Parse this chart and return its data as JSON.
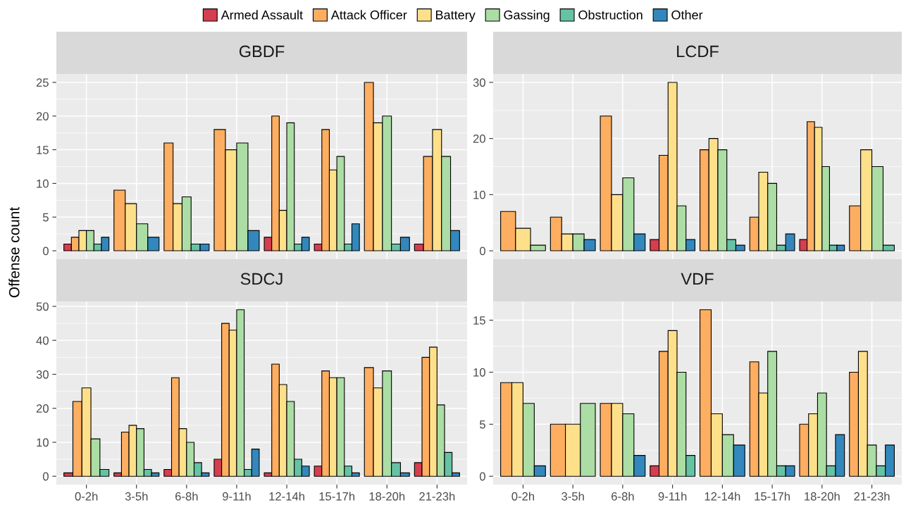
{
  "chart_data": [
    {
      "type": "bar",
      "title": "GBDF",
      "ylabel": "Offense count",
      "legend": "top",
      "grid": true,
      "tick_labels": "y",
      "categories": [
        "0-2h",
        "3-5h",
        "6-8h",
        "9-11h",
        "12-14h",
        "15-17h",
        "18-20h",
        "21-23h"
      ],
      "ylim": [
        -1.25,
        26.25
      ],
      "yticks": [
        0,
        5,
        10,
        15,
        20,
        25
      ],
      "series": [
        {
          "name": "Armed Assault",
          "color": "#d53e4f",
          "values": [
            1,
            null,
            null,
            null,
            2,
            1,
            null,
            1
          ]
        },
        {
          "name": "Attack Officer",
          "color": "#fdae61",
          "values": [
            2,
            9,
            16,
            18,
            20,
            18,
            25,
            14
          ]
        },
        {
          "name": "Battery",
          "color": "#fee08b",
          "values": [
            3,
            7,
            7,
            15,
            6,
            12,
            19,
            18
          ]
        },
        {
          "name": "Gassing",
          "color": "#abdda4",
          "values": [
            3,
            4,
            8,
            16,
            19,
            14,
            20,
            14
          ]
        },
        {
          "name": "Obstruction",
          "color": "#66c2a5",
          "values": [
            1,
            null,
            1,
            null,
            1,
            1,
            1,
            null
          ]
        },
        {
          "name": "Other",
          "color": "#3288bd",
          "values": [
            2,
            2,
            1,
            3,
            2,
            4,
            2,
            3
          ]
        }
      ]
    },
    {
      "type": "bar",
      "title": "LCDF",
      "grid": true,
      "tick_labels": "y",
      "categories": [
        "0-2h",
        "3-5h",
        "6-8h",
        "9-11h",
        "12-14h",
        "15-17h",
        "18-20h",
        "21-23h"
      ],
      "ylim": [
        -1.5,
        31.5
      ],
      "yticks": [
        0,
        10,
        20,
        30
      ],
      "series": [
        {
          "name": "Armed Assault",
          "color": "#d53e4f",
          "values": [
            null,
            null,
            null,
            2,
            null,
            null,
            2,
            null
          ]
        },
        {
          "name": "Attack Officer",
          "color": "#fdae61",
          "values": [
            7,
            6,
            24,
            17,
            18,
            6,
            23,
            8
          ]
        },
        {
          "name": "Battery",
          "color": "#fee08b",
          "values": [
            4,
            3,
            10,
            30,
            20,
            14,
            22,
            18
          ]
        },
        {
          "name": "Gassing",
          "color": "#abdda4",
          "values": [
            1,
            3,
            13,
            8,
            18,
            12,
            15,
            15
          ]
        },
        {
          "name": "Obstruction",
          "color": "#66c2a5",
          "values": [
            null,
            null,
            null,
            null,
            2,
            1,
            1,
            1
          ]
        },
        {
          "name": "Other",
          "color": "#3288bd",
          "values": [
            null,
            2,
            3,
            2,
            1,
            3,
            1,
            null
          ]
        }
      ]
    },
    {
      "type": "bar",
      "title": "SDCJ",
      "grid": true,
      "categories": [
        "0-2h",
        "3-5h",
        "6-8h",
        "9-11h",
        "12-14h",
        "15-17h",
        "18-20h",
        "21-23h"
      ],
      "ylim": [
        -2.45,
        51.45
      ],
      "yticks": [
        0,
        10,
        20,
        30,
        40,
        50
      ],
      "series": [
        {
          "name": "Armed Assault",
          "color": "#d53e4f",
          "values": [
            1,
            1,
            2,
            5,
            1,
            3,
            null,
            4
          ]
        },
        {
          "name": "Attack Officer",
          "color": "#fdae61",
          "values": [
            22,
            13,
            29,
            45,
            33,
            31,
            32,
            35
          ]
        },
        {
          "name": "Battery",
          "color": "#fee08b",
          "values": [
            26,
            15,
            14,
            43,
            27,
            29,
            26,
            38
          ]
        },
        {
          "name": "Gassing",
          "color": "#abdda4",
          "values": [
            11,
            14,
            10,
            49,
            22,
            29,
            31,
            21
          ]
        },
        {
          "name": "Obstruction",
          "color": "#66c2a5",
          "values": [
            2,
            2,
            4,
            2,
            5,
            3,
            4,
            7
          ]
        },
        {
          "name": "Other",
          "color": "#3288bd",
          "values": [
            null,
            1,
            1,
            8,
            3,
            1,
            1,
            1
          ]
        }
      ]
    },
    {
      "type": "bar",
      "title": "VDF",
      "grid": true,
      "categories": [
        "0-2h",
        "3-5h",
        "6-8h",
        "9-11h",
        "12-14h",
        "15-17h",
        "18-20h",
        "21-23h"
      ],
      "ylim": [
        -0.8,
        16.8
      ],
      "yticks": [
        0,
        5,
        10,
        15
      ],
      "series": [
        {
          "name": "Armed Assault",
          "color": "#d53e4f",
          "values": [
            null,
            null,
            null,
            1,
            null,
            null,
            null,
            null
          ]
        },
        {
          "name": "Attack Officer",
          "color": "#fdae61",
          "values": [
            9,
            5,
            7,
            12,
            16,
            11,
            5,
            10
          ]
        },
        {
          "name": "Battery",
          "color": "#fee08b",
          "values": [
            9,
            5,
            7,
            14,
            6,
            8,
            6,
            12
          ]
        },
        {
          "name": "Gassing",
          "color": "#abdda4",
          "values": [
            7,
            7,
            6,
            10,
            4,
            12,
            8,
            3
          ]
        },
        {
          "name": "Obstruction",
          "color": "#66c2a5",
          "values": [
            null,
            null,
            null,
            2,
            null,
            1,
            1,
            1
          ]
        },
        {
          "name": "Other",
          "color": "#3288bd",
          "values": [
            1,
            null,
            2,
            null,
            3,
            1,
            4,
            3
          ]
        }
      ]
    }
  ]
}
